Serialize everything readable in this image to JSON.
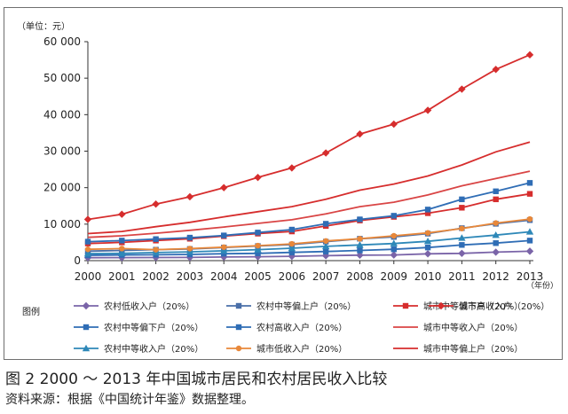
{
  "figure": {
    "title": "图 2 2000 ～ 2013 年中国城市居民和农村居民收入比较",
    "source": "资料来源：根据《中国统计年鉴》数据整理。"
  },
  "chart_data": {
    "type": "line",
    "ylabel": "（单位：元）",
    "xlabel": "（年份）",
    "legend_title": "图例",
    "ylim": [
      0,
      60000
    ],
    "yticks": [
      0,
      10000,
      20000,
      30000,
      40000,
      50000,
      60000
    ],
    "ytick_labels": [
      "0",
      "10 000",
      "20 000",
      "30 000",
      "40 000",
      "50 000",
      "60 000"
    ],
    "x": [
      "2000",
      "2001",
      "2002",
      "2003",
      "2004",
      "2005",
      "2006",
      "2007",
      "2008",
      "2009",
      "2010",
      "2011",
      "2012",
      "2013"
    ],
    "grid": false,
    "legend_position": "bottom",
    "series": [
      {
        "name": "农村低收入户（20%）",
        "color": "#7a64a8",
        "marker": "diamond",
        "values": [
          800,
          820,
          860,
          870,
          1000,
          1070,
          1180,
          1350,
          1500,
          1550,
          1870,
          2000,
          2320,
          2580
        ]
      },
      {
        "name": "农村中等偏上户（20%）",
        "color": "#4a6fa8",
        "marker": "square",
        "values": [
          2600,
          2800,
          3000,
          3200,
          3600,
          4000,
          4400,
          5200,
          6000,
          6500,
          7400,
          8900,
          10100,
          11100
        ]
      },
      {
        "name": "城市中等偏下户（20%）",
        "color": "#d62d2d",
        "marker": "square",
        "values": [
          4700,
          5000,
          5500,
          6000,
          6700,
          7400,
          8000,
          9500,
          11000,
          12000,
          13000,
          14500,
          16800,
          18300
        ]
      },
      {
        "name": "城市高收入户（20%）",
        "color": "#d62d2d",
        "marker": "diamond",
        "values": [
          11300,
          12700,
          15500,
          17500,
          20000,
          22800,
          25400,
          29500,
          34700,
          37400,
          41200,
          47000,
          52400,
          56400
        ]
      },
      {
        "name": "农村中等偏下户（20%）",
        "color": "#2f6db5",
        "marker": "square",
        "values": [
          1450,
          1550,
          1600,
          1700,
          1900,
          2000,
          2250,
          2500,
          2800,
          3100,
          3600,
          4300,
          4800,
          5500
        ]
      },
      {
        "name": "农村高收入户（20%）",
        "color": "#2f6db5",
        "marker": "square",
        "values": [
          5200,
          5500,
          5900,
          6300,
          6900,
          7700,
          8500,
          10100,
          11300,
          12300,
          14000,
          16800,
          19000,
          21300
        ]
      },
      {
        "name": "城市中等收入户（20%）",
        "color": "#d94545",
        "marker": "none",
        "values": [
          6400,
          6800,
          7500,
          8300,
          9200,
          10200,
          11200,
          12800,
          14800,
          16000,
          18000,
          20500,
          22500,
          24500
        ]
      },
      {
        "name": "农村中等收入户（20%）",
        "color": "#2e88b8",
        "marker": "triangle",
        "values": [
          1900,
          2000,
          2200,
          2400,
          2700,
          3000,
          3400,
          3900,
          4300,
          4700,
          5300,
          6200,
          7000,
          7900
        ]
      },
      {
        "name": "城市低收入户（20%）",
        "color": "#e8883a",
        "marker": "circle",
        "values": [
          3100,
          3300,
          3000,
          3300,
          3700,
          4100,
          4600,
          5400,
          6000,
          6800,
          7600,
          8800,
          10300,
          11400
        ]
      },
      {
        "name": "城市中等偏上户（20%）",
        "color": "#d62d2d",
        "marker": "none",
        "values": [
          7400,
          8000,
          9300,
          10500,
          12000,
          13400,
          14800,
          16800,
          19300,
          21000,
          23200,
          26200,
          29800,
          32500
        ]
      }
    ]
  }
}
